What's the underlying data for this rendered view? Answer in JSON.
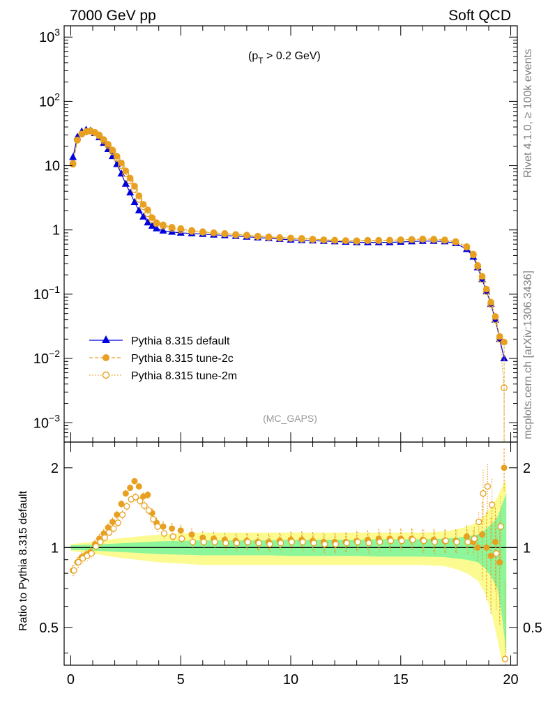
{
  "header": {
    "left_title": "7000 GeV pp",
    "right_title": "Soft QCD"
  },
  "side_labels": {
    "rivet": "Rivet 4.1.0, ≥ 100k events",
    "mcplots": "mcplots.cern.ch [arXiv:1306.3436]"
  },
  "annotation": {
    "cut_p": "(p",
    "cut_sub": "T",
    "cut_rest": " > 0.2 GeV)",
    "analysis_tag": "(MC_GAPS)"
  },
  "colors": {
    "default": "#0000dd",
    "tune2c": "#e8a020",
    "tune2m": "#e8a020",
    "band_green": "#8df59a",
    "band_yellow": "#fbfb92"
  },
  "chart_data": [
    {
      "type": "line",
      "title": "",
      "xlabel": "",
      "ylabel": "",
      "yscale": "log",
      "ylim": [
        0.0005,
        1500
      ],
      "xlim": [
        -0.3,
        20.3
      ],
      "yticks": [
        {
          "value": 1000,
          "base": "10",
          "exp": "3"
        },
        {
          "value": 100,
          "base": "10",
          "exp": "2"
        },
        {
          "value": 10,
          "base": "10",
          "exp": ""
        },
        {
          "value": 1,
          "base": "1",
          "exp": ""
        },
        {
          "value": 0.1,
          "base": "10",
          "exp": "−1"
        },
        {
          "value": 0.01,
          "base": "10",
          "exp": "−2"
        },
        {
          "value": 0.001,
          "base": "10",
          "exp": "−3"
        }
      ],
      "legend": {
        "placement": "middle-left",
        "entries": [
          "Pythia 8.315 default",
          "Pythia 8.315 tune-2c",
          "Pythia 8.315 tune-2m"
        ]
      },
      "series": [
        {
          "name": "Pythia 8.315 default",
          "style": "triangle-solid",
          "x": [
            0.1,
            0.3,
            0.5,
            0.7,
            0.9,
            1.1,
            1.3,
            1.5,
            1.7,
            1.9,
            2.1,
            2.3,
            2.5,
            2.7,
            2.9,
            3.1,
            3.3,
            3.5,
            3.7,
            3.9,
            4.2,
            4.6,
            5.0,
            5.5,
            6.0,
            6.5,
            7.0,
            7.5,
            8.0,
            8.5,
            9.0,
            9.5,
            10.0,
            10.5,
            11.0,
            11.5,
            12.0,
            12.5,
            13.0,
            13.5,
            14.0,
            14.5,
            15.0,
            15.5,
            16.0,
            16.5,
            17.0,
            17.5,
            18.0,
            18.3,
            18.5,
            18.7,
            18.9,
            19.1,
            19.3,
            19.5,
            19.7
          ],
          "values": [
            13.5,
            28,
            34,
            36,
            35,
            32,
            27.5,
            22.5,
            18,
            14,
            10.5,
            7.5,
            5.2,
            3.8,
            2.7,
            2.0,
            1.6,
            1.3,
            1.15,
            1.05,
            0.97,
            0.93,
            0.9,
            0.88,
            0.86,
            0.84,
            0.82,
            0.8,
            0.78,
            0.76,
            0.74,
            0.72,
            0.7,
            0.69,
            0.68,
            0.67,
            0.66,
            0.65,
            0.64,
            0.64,
            0.64,
            0.64,
            0.65,
            0.66,
            0.67,
            0.67,
            0.66,
            0.62,
            0.5,
            0.38,
            0.26,
            0.17,
            0.11,
            0.07,
            0.04,
            0.02,
            0.01
          ]
        },
        {
          "name": "Pythia 8.315 tune-2c",
          "style": "circle-solid-dashed",
          "x": [
            0.1,
            0.3,
            0.5,
            0.7,
            0.9,
            1.1,
            1.3,
            1.5,
            1.7,
            1.9,
            2.1,
            2.3,
            2.5,
            2.7,
            2.9,
            3.1,
            3.3,
            3.5,
            3.7,
            3.9,
            4.2,
            4.6,
            5.0,
            5.5,
            6.0,
            6.5,
            7.0,
            7.5,
            8.0,
            8.5,
            9.0,
            9.5,
            10.0,
            10.5,
            11.0,
            11.5,
            12.0,
            12.5,
            13.0,
            13.5,
            14.0,
            14.5,
            15.0,
            15.5,
            16.0,
            16.5,
            17.0,
            17.5,
            18.0,
            18.3,
            18.5,
            18.7,
            18.9,
            19.1,
            19.3,
            19.5,
            19.7
          ],
          "values": [
            10.5,
            25,
            31,
            34,
            35,
            33,
            30,
            25.5,
            21.5,
            17.5,
            14,
            11,
            8.3,
            6.4,
            4.8,
            3.4,
            2.5,
            2.05,
            1.55,
            1.3,
            1.2,
            1.1,
            1.05,
            0.98,
            0.94,
            0.9,
            0.88,
            0.85,
            0.83,
            0.8,
            0.78,
            0.76,
            0.75,
            0.74,
            0.72,
            0.7,
            0.69,
            0.68,
            0.68,
            0.69,
            0.69,
            0.69,
            0.7,
            0.71,
            0.72,
            0.72,
            0.7,
            0.66,
            0.55,
            0.42,
            0.28,
            0.19,
            0.12,
            0.075,
            0.045,
            0.022,
            0.018
          ]
        },
        {
          "name": "Pythia 8.315 tune-2m",
          "style": "circle-open-dotted",
          "x": [
            0.1,
            0.3,
            0.5,
            0.7,
            0.9,
            1.1,
            1.3,
            1.5,
            1.7,
            1.9,
            2.1,
            2.3,
            2.5,
            2.7,
            2.9,
            3.1,
            3.3,
            3.5,
            3.7,
            3.9,
            4.2,
            4.6,
            5.0,
            5.5,
            6.0,
            6.5,
            7.0,
            7.5,
            8.0,
            8.5,
            9.0,
            9.5,
            10.0,
            10.5,
            11.0,
            11.5,
            12.0,
            12.5,
            13.0,
            13.5,
            14.0,
            14.5,
            15.0,
            15.5,
            16.0,
            16.5,
            17.0,
            17.5,
            18.0,
            18.3,
            18.5,
            18.7,
            18.9,
            19.1,
            19.3,
            19.5,
            19.7
          ],
          "values": [
            10.8,
            25,
            31,
            33.5,
            34.5,
            32.5,
            29,
            24.5,
            20.5,
            16.5,
            13,
            10,
            7.5,
            5.8,
            4.2,
            3.0,
            2.3,
            1.8,
            1.45,
            1.25,
            1.15,
            1.05,
            1.0,
            0.95,
            0.92,
            0.9,
            0.87,
            0.84,
            0.82,
            0.79,
            0.77,
            0.75,
            0.74,
            0.72,
            0.71,
            0.7,
            0.69,
            0.68,
            0.67,
            0.68,
            0.68,
            0.69,
            0.7,
            0.71,
            0.72,
            0.71,
            0.69,
            0.65,
            0.54,
            0.41,
            0.27,
            0.17,
            0.11,
            0.07,
            0.04,
            0.02,
            0.0035
          ]
        }
      ]
    },
    {
      "type": "line",
      "title": "",
      "xlabel": "",
      "ylabel": "Ratio to Pythia 8.315 default",
      "yscale": "log",
      "ylim": [
        0.36,
        2.5
      ],
      "xlim": [
        -0.3,
        20.3
      ],
      "xticks": [
        0,
        5,
        10,
        15,
        20
      ],
      "yticks": [
        {
          "value": 0.5,
          "label": "0.5"
        },
        {
          "value": 1,
          "label": "1"
        },
        {
          "value": 2,
          "label": "2"
        }
      ],
      "bands": {
        "x": [
          0,
          1,
          2,
          3,
          4,
          5,
          6,
          7,
          8,
          9,
          10,
          11,
          12,
          13,
          14,
          15,
          16,
          17,
          17.5,
          18,
          18.5,
          18.8,
          19.1,
          19.4,
          19.6,
          19.8
        ],
        "green_halfwidth": [
          0.02,
          0.025,
          0.035,
          0.045,
          0.055,
          0.06,
          0.065,
          0.065,
          0.065,
          0.065,
          0.07,
          0.07,
          0.07,
          0.07,
          0.075,
          0.075,
          0.075,
          0.08,
          0.09,
          0.1,
          0.12,
          0.16,
          0.22,
          0.3,
          0.45,
          0.6
        ],
        "yellow_halfwidth": [
          0.03,
          0.05,
          0.08,
          0.1,
          0.12,
          0.13,
          0.14,
          0.14,
          0.14,
          0.14,
          0.14,
          0.14,
          0.14,
          0.14,
          0.14,
          0.14,
          0.14,
          0.15,
          0.17,
          0.2,
          0.25,
          0.32,
          0.42,
          0.55,
          0.7,
          0.8
        ]
      },
      "series": [
        {
          "name": "Pythia 8.315 tune-2c",
          "x": [
            0.1,
            0.3,
            0.5,
            0.7,
            0.9,
            1.1,
            1.3,
            1.5,
            1.7,
            1.9,
            2.1,
            2.3,
            2.5,
            2.7,
            2.9,
            3.1,
            3.3,
            3.5,
            3.7,
            3.9,
            4.2,
            4.6,
            5.0,
            5.5,
            6.0,
            6.5,
            7.0,
            7.5,
            8.0,
            8.5,
            9.0,
            9.5,
            10.0,
            10.5,
            11.0,
            11.5,
            12.0,
            12.5,
            13.0,
            13.5,
            14.0,
            14.5,
            15.0,
            15.5,
            16.0,
            16.5,
            17.0,
            17.5,
            18.0,
            18.3,
            18.5,
            18.7,
            18.9,
            19.1,
            19.3,
            19.5,
            19.7
          ],
          "values": [
            0.82,
            0.88,
            0.92,
            0.94,
            0.96,
            1.03,
            1.08,
            1.13,
            1.19,
            1.25,
            1.33,
            1.46,
            1.6,
            1.68,
            1.78,
            1.7,
            1.56,
            1.58,
            1.35,
            1.24,
            1.2,
            1.18,
            1.16,
            1.12,
            1.09,
            1.08,
            1.07,
            1.06,
            1.06,
            1.05,
            1.05,
            1.06,
            1.07,
            1.07,
            1.06,
            1.05,
            1.05,
            1.05,
            1.06,
            1.07,
            1.08,
            1.08,
            1.08,
            1.08,
            1.07,
            1.07,
            1.06,
            1.06,
            1.1,
            1.05,
            1.0,
            1.12,
            1.0,
            0.93,
            1.05,
            0.88,
            2.0
          ]
        },
        {
          "name": "Pythia 8.315 tune-2m",
          "x": [
            0.1,
            0.3,
            0.5,
            0.7,
            0.9,
            1.1,
            1.3,
            1.5,
            1.7,
            1.9,
            2.1,
            2.3,
            2.5,
            2.7,
            2.9,
            3.1,
            3.3,
            3.5,
            3.7,
            3.9,
            4.2,
            4.6,
            5.0,
            5.5,
            6.0,
            6.5,
            7.0,
            7.5,
            8.0,
            8.5,
            9.0,
            9.5,
            10.0,
            10.5,
            11.0,
            11.5,
            12.0,
            12.5,
            13.0,
            13.5,
            14.0,
            14.5,
            15.0,
            15.5,
            16.0,
            16.5,
            17.0,
            17.5,
            18.0,
            18.3,
            18.5,
            18.7,
            18.9,
            19.1,
            19.3,
            19.5,
            19.7
          ],
          "values": [
            0.82,
            0.88,
            0.91,
            0.93,
            0.95,
            1.01,
            1.05,
            1.09,
            1.14,
            1.18,
            1.24,
            1.33,
            1.43,
            1.52,
            1.55,
            1.5,
            1.44,
            1.38,
            1.28,
            1.2,
            1.13,
            1.1,
            1.08,
            1.05,
            1.05,
            1.05,
            1.04,
            1.04,
            1.05,
            1.04,
            1.03,
            1.04,
            1.05,
            1.05,
            1.04,
            1.03,
            1.03,
            1.04,
            1.05,
            1.04,
            1.05,
            1.06,
            1.06,
            1.07,
            1.06,
            1.05,
            1.06,
            1.05,
            1.05,
            1.08,
            1.25,
            1.6,
            1.7,
            1.45,
            0.95,
            1.2,
            0.38
          ]
        }
      ]
    }
  ]
}
